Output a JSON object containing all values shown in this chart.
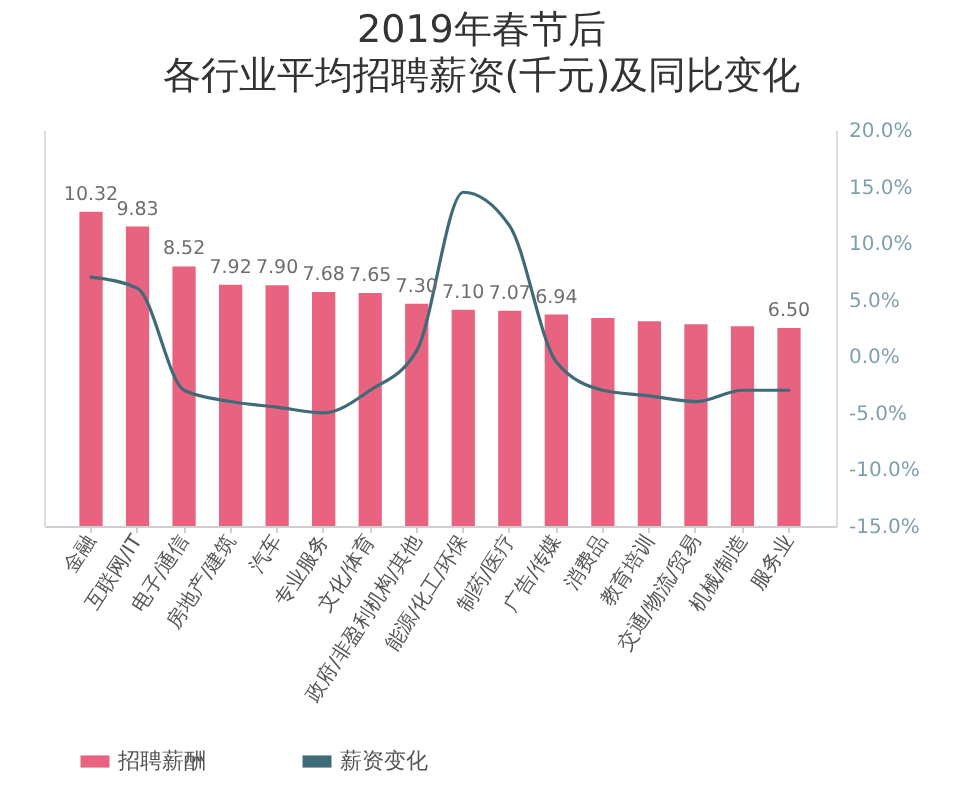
{
  "chart_data": {
    "type": "bar",
    "title": "2019年春节后",
    "subtitle": "各行业平均招聘薪资(千元)及同比变化",
    "categories": [
      "金融",
      "互联网/IT",
      "电子/通信",
      "房地产/建筑",
      "汽车",
      "专业服务",
      "文化/体育",
      "政府/非盈利机构/其他",
      "能源/化工/环保",
      "制药/医疗",
      "广告/传媒",
      "消费品",
      "教育培训",
      "交通/物流/贸易",
      "机械/制造",
      "服务业"
    ],
    "series": [
      {
        "name": "招聘薪酬",
        "color": "#e8637f",
        "values": [
          10.32,
          9.83,
          8.52,
          7.92,
          7.9,
          7.68,
          7.65,
          7.3,
          7.1,
          7.07,
          6.94,
          6.83,
          6.72,
          6.62,
          6.56,
          6.5
        ],
        "value_labels": [
          "10.32",
          "9.83",
          "8.52",
          "7.92",
          "7.90",
          "7.68",
          "7.65",
          "7.30",
          "7.10",
          "7.07",
          "6.94",
          null,
          null,
          null,
          null,
          "6.50"
        ]
      },
      {
        "name": "薪资变化",
        "type": "line",
        "axis": "y2",
        "color": "#3f6b78",
        "values": [
          7,
          6,
          -3,
          -4,
          -4.5,
          -5,
          -3,
          0.5,
          14.5,
          11.5,
          -0.5,
          -3,
          -3.5,
          -4,
          -3,
          -3
        ]
      }
    ],
    "ylim": [
      0,
      13
    ],
    "y2lim": [
      -15,
      20
    ],
    "y2ticks": [
      {
        "value": 20,
        "label": "20.0%"
      },
      {
        "value": 15,
        "label": "15.0%"
      },
      {
        "value": 10,
        "label": "10.0%"
      },
      {
        "value": 5,
        "label": "5.0%"
      },
      {
        "value": 0,
        "label": "0.0%"
      },
      {
        "value": -5,
        "label": "-5.0%"
      },
      {
        "value": -10,
        "label": "-10.0%"
      },
      {
        "value": -15,
        "label": "-15.0%"
      }
    ],
    "legend": "bottom left",
    "line_style": "solid",
    "grid": false
  }
}
